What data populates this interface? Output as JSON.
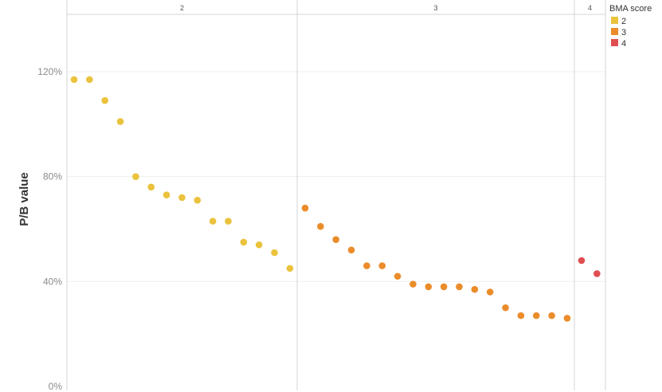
{
  "chart_data": {
    "type": "scatter",
    "ylabel": "P/B value",
    "ylim": [
      0,
      1.4
    ],
    "yticks": [
      {
        "value": 0,
        "label": "0%"
      },
      {
        "value": 0.4,
        "label": "40%"
      },
      {
        "value": 0.8,
        "label": "80%"
      },
      {
        "value": 1.2,
        "label": "120%"
      }
    ],
    "grid": true,
    "legend": {
      "title": "BMA score",
      "placement": "top-right",
      "entries": [
        {
          "name": "2",
          "color": "#EAC23C"
        },
        {
          "name": "3",
          "color": "#EB8C2B"
        },
        {
          "name": "4",
          "color": "#DF4E51"
        }
      ]
    },
    "panels": [
      "2",
      "3",
      "4"
    ],
    "series": [
      {
        "name": "2",
        "color": "#EAC23C",
        "values": [
          1.17,
          1.17,
          1.09,
          1.01,
          0.8,
          0.76,
          0.73,
          0.72,
          0.71,
          0.63,
          0.63,
          0.55,
          0.54,
          0.51,
          0.45
        ]
      },
      {
        "name": "3",
        "color": "#EB8C2B",
        "values": [
          0.68,
          0.61,
          0.56,
          0.52,
          0.46,
          0.46,
          0.42,
          0.39,
          0.38,
          0.38,
          0.38,
          0.37,
          0.36,
          0.3,
          0.27,
          0.27,
          0.27,
          0.26
        ]
      },
      {
        "name": "4",
        "color": "#DF4E51",
        "values": [
          0.48,
          0.43
        ]
      }
    ]
  }
}
